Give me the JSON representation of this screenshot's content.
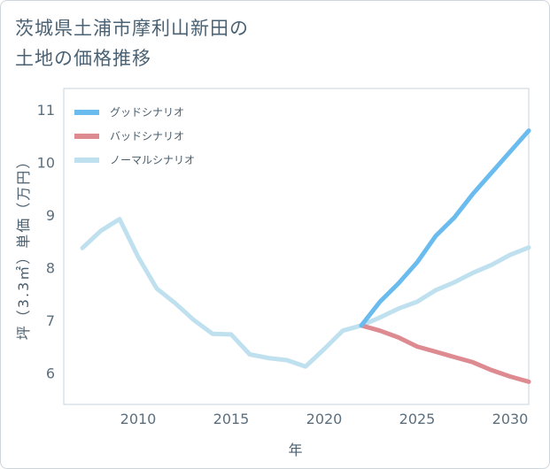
{
  "title": "茨城県土浦市摩利山新田の\n土地の価格推移",
  "chart_data": {
    "type": "line",
    "xlabel": "年",
    "ylabel": "坪（3.3㎡）単価（万円）",
    "xlim": [
      2006,
      2031
    ],
    "ylim": [
      5.4,
      11.4
    ],
    "xticks": [
      2010,
      2015,
      2020,
      2025,
      2030
    ],
    "yticks": [
      6,
      7,
      8,
      9,
      10,
      11
    ],
    "grid": true,
    "legend_position": "top-left",
    "series": [
      {
        "name": "グッドシナリオ",
        "color": "#6bbcee",
        "x": [
          2022,
          2023,
          2024,
          2025,
          2026,
          2027,
          2028,
          2029,
          2030,
          2031
        ],
        "y": [
          6.9,
          7.35,
          7.7,
          8.1,
          8.6,
          8.95,
          9.4,
          9.8,
          10.2,
          10.6
        ]
      },
      {
        "name": "バッドシナリオ",
        "color": "#dd8a90",
        "x": [
          2022,
          2023,
          2024,
          2025,
          2026,
          2027,
          2028,
          2029,
          2030,
          2031
        ],
        "y": [
          6.9,
          6.8,
          6.67,
          6.5,
          6.4,
          6.3,
          6.2,
          6.05,
          5.93,
          5.83
        ]
      },
      {
        "name": "ノーマルシナリオ",
        "color": "#bfe0ee",
        "x": [
          2007,
          2008,
          2009,
          2010,
          2011,
          2012,
          2013,
          2014,
          2015,
          2016,
          2017,
          2018,
          2019,
          2020,
          2021,
          2022,
          2023,
          2024,
          2025,
          2026,
          2027,
          2028,
          2029,
          2030,
          2031
        ],
        "y": [
          8.37,
          8.7,
          8.92,
          8.2,
          7.6,
          7.32,
          7.0,
          6.74,
          6.73,
          6.35,
          6.28,
          6.24,
          6.12,
          6.45,
          6.8,
          6.9,
          7.05,
          7.22,
          7.35,
          7.57,
          7.72,
          7.9,
          8.05,
          8.24,
          8.38
        ]
      }
    ]
  }
}
